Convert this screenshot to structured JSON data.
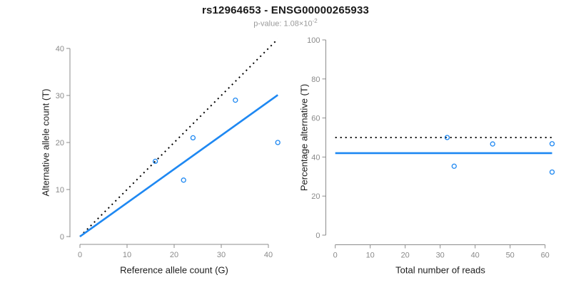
{
  "figure": {
    "title": "rs12964653 - ENSG00000265933",
    "subtitle": {
      "label": "p-value:",
      "mantissa": "1.08",
      "base": "×10",
      "exponent": "-2"
    },
    "colors": {
      "accent": "#1E88F2",
      "axis_gray": "#8C8C8C",
      "tick_label_gray": "#8A8A8A",
      "line_black": "#000000"
    }
  },
  "chart_data": [
    {
      "type": "scatter",
      "xlabel": "Reference allele count (G)",
      "ylabel": "Alternative allele count (T)",
      "xlim": [
        0,
        42
      ],
      "ylim": [
        0,
        42
      ],
      "xticks": [
        0,
        10,
        20,
        30,
        40
      ],
      "yticks": [
        0,
        10,
        20,
        30,
        40
      ],
      "grid": false,
      "points": [
        [
          16,
          16
        ],
        [
          22,
          12
        ],
        [
          24,
          21
        ],
        [
          33,
          29
        ],
        [
          42,
          20
        ]
      ],
      "lines": [
        {
          "name": "identity",
          "style": "dotted",
          "color": "black",
          "x1": 0,
          "y1": 0,
          "x2": 42,
          "y2": 42
        },
        {
          "name": "fit",
          "style": "solid",
          "color": "accent",
          "x1": 0,
          "y1": 0,
          "x2": 42,
          "y2": 30.1
        }
      ]
    },
    {
      "type": "scatter",
      "xlabel": "Total number of reads",
      "ylabel": "Percentage alternative (T)",
      "xlim": [
        0,
        62
      ],
      "ylim": [
        0,
        100
      ],
      "xticks": [
        0,
        10,
        20,
        30,
        40,
        50,
        60
      ],
      "yticks": [
        0,
        20,
        40,
        60,
        80,
        100
      ],
      "grid": false,
      "points": [
        [
          32,
          50
        ],
        [
          34,
          35.3
        ],
        [
          45,
          46.7
        ],
        [
          62,
          46.8
        ],
        [
          62,
          32.3
        ]
      ],
      "lines": [
        {
          "name": "expected",
          "style": "dotted",
          "color": "black",
          "x1": 0,
          "y1": 50,
          "x2": 62,
          "y2": 50
        },
        {
          "name": "mean",
          "style": "solid",
          "color": "accent",
          "x1": 0,
          "y1": 42,
          "x2": 62,
          "y2": 42
        }
      ]
    }
  ]
}
